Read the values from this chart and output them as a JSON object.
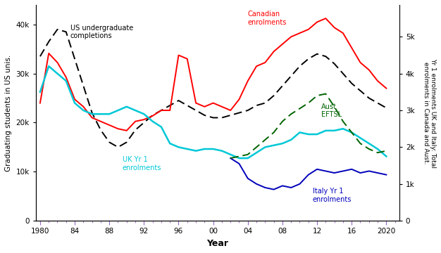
{
  "ylabel_left": "Graduating students in US unis.",
  "ylabel_right": "Yr 1 enrolments UK and Italy: Total\nenrolments in Canada and Aust.",
  "xlabel": "Year",
  "ylim_left": [
    0,
    44000
  ],
  "ylim_right": [
    0,
    5867
  ],
  "yticks_left": [
    0,
    10000,
    20000,
    30000,
    40000
  ],
  "yticks_right": [
    0,
    1000,
    2000,
    3000,
    4000,
    5000
  ],
  "ytick_labels_left": [
    "0",
    "10k",
    "20k",
    "30k",
    "40k"
  ],
  "ytick_labels_right": [
    "0",
    "1k",
    "2k",
    "3k",
    "4k",
    "5k"
  ],
  "us_years": [
    1980,
    1981,
    1982,
    1983,
    1984,
    1985,
    1986,
    1987,
    1988,
    1989,
    1990,
    1991,
    1992,
    1993,
    1994,
    1995,
    1996,
    1997,
    1998,
    1999,
    2000,
    2001,
    2002,
    2003,
    2004,
    2005,
    2006,
    2007,
    2008,
    2009,
    2010,
    2011,
    2012,
    2013,
    2014,
    2015,
    2016,
    2017,
    2018,
    2019,
    2020
  ],
  "us_values": [
    33500,
    36500,
    39000,
    38500,
    33000,
    27500,
    22000,
    18500,
    16000,
    15000,
    16000,
    18500,
    20000,
    21500,
    22500,
    23500,
    24500,
    23500,
    22500,
    21500,
    21000,
    21000,
    21500,
    22000,
    22500,
    23500,
    24000,
    25500,
    27500,
    29500,
    31500,
    33000,
    34000,
    33500,
    32000,
    30000,
    28000,
    26500,
    25000,
    24000,
    23000
  ],
  "canada_years": [
    1980,
    1981,
    1982,
    1983,
    1984,
    1985,
    1986,
    1987,
    1988,
    1989,
    1990,
    1991,
    1992,
    1993,
    1994,
    1995,
    1996,
    1997,
    1998,
    1999,
    2000,
    2001,
    2002,
    2003,
    2004,
    2005,
    2006,
    2007,
    2008,
    2009,
    2010,
    2011,
    2012,
    2013,
    2014,
    2015,
    2016,
    2017,
    2018,
    2019,
    2020
  ],
  "canada_values": [
    3200,
    4550,
    4300,
    3900,
    3300,
    3100,
    2800,
    2700,
    2600,
    2500,
    2450,
    2700,
    2750,
    2850,
    3000,
    3000,
    4500,
    4400,
    3200,
    3100,
    3200,
    3100,
    3000,
    3300,
    3800,
    4200,
    4300,
    4600,
    4800,
    5000,
    5100,
    5200,
    5400,
    5500,
    5250,
    5100,
    4700,
    4300,
    4100,
    3800,
    3600
  ],
  "uk_years": [
    1980,
    1981,
    1982,
    1983,
    1984,
    1985,
    1986,
    1987,
    1988,
    1989,
    1990,
    1991,
    1992,
    1993,
    1994,
    1995,
    1996,
    1997,
    1998,
    1999,
    2000,
    2001,
    2002,
    2003,
    2004,
    2005,
    2006,
    2007,
    2008,
    2009,
    2010,
    2011,
    2012,
    2013,
    2014,
    2015,
    2016,
    2017,
    2018,
    2019,
    2020
  ],
  "uk_values": [
    3500,
    4200,
    4000,
    3800,
    3200,
    3000,
    2900,
    2900,
    2900,
    3000,
    3100,
    3000,
    2900,
    2700,
    2550,
    2100,
    2000,
    1950,
    1900,
    1950,
    1950,
    1900,
    1800,
    1700,
    1700,
    1850,
    2000,
    2050,
    2100,
    2200,
    2400,
    2350,
    2350,
    2450,
    2450,
    2500,
    2400,
    2250,
    2100,
    1950,
    1750
  ],
  "italy_years": [
    2002,
    2003,
    2004,
    2005,
    2006,
    2007,
    2008,
    2009,
    2010,
    2011,
    2012,
    2013,
    2014,
    2015,
    2016,
    2017,
    2018,
    2019,
    2020
  ],
  "italy_values": [
    1700,
    1550,
    1150,
    1000,
    900,
    850,
    950,
    900,
    1000,
    1250,
    1400,
    1350,
    1300,
    1350,
    1400,
    1300,
    1350,
    1300,
    1250
  ],
  "aust_years": [
    2002,
    2003,
    2004,
    2005,
    2006,
    2007,
    2008,
    2009,
    2010,
    2011,
    2012,
    2013,
    2014,
    2015,
    2016,
    2017,
    2018,
    2019,
    2020
  ],
  "aust_values": [
    1700,
    1750,
    1800,
    2000,
    2200,
    2400,
    2700,
    2900,
    3050,
    3200,
    3400,
    3450,
    3100,
    2700,
    2400,
    2100,
    1950,
    1850,
    1900
  ],
  "colors": {
    "us": "black",
    "canada": "red",
    "uk": "#00c8d7",
    "italy": "#0000bb",
    "aust": "#006400"
  },
  "xticks": [
    1980,
    1984,
    1988,
    1992,
    1996,
    2000,
    2004,
    2008,
    2012,
    2016,
    2020
  ],
  "xtick_labels": [
    "1980",
    "84",
    "88",
    "92",
    "96",
    "00",
    "04",
    "08",
    "12",
    "16",
    "2020"
  ],
  "xlim": [
    1979.5,
    2021.5
  ]
}
